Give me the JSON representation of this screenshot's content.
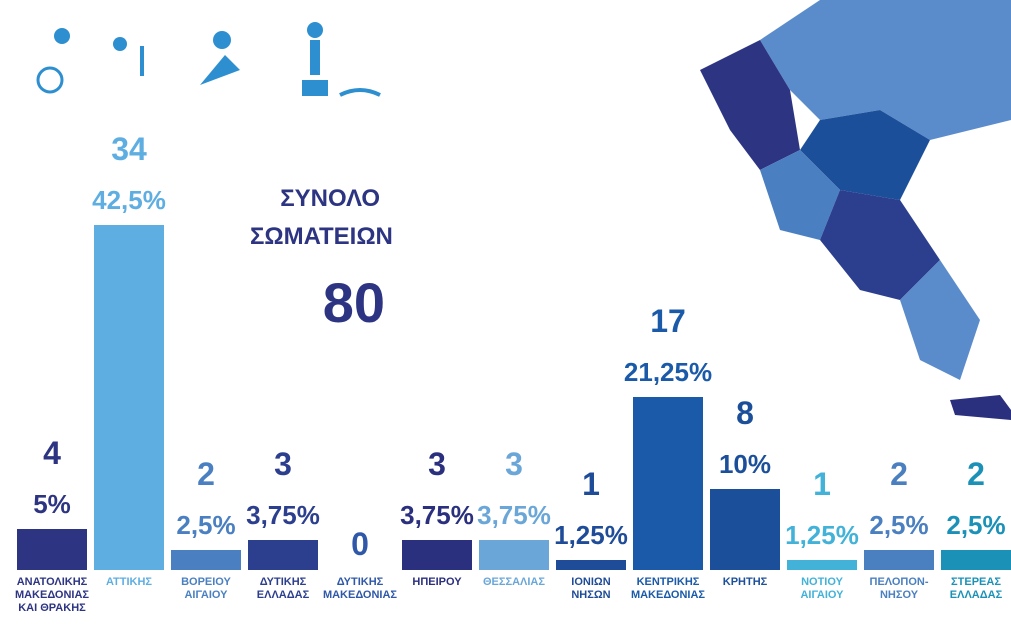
{
  "chart_data": {
    "type": "bar",
    "total_label": "ΣΥΝΟΛΟ ΣΩΜΑΤΕΙΩΝ",
    "total": 80,
    "categories": [
      "ΑΝΑΤΟΛΙΚΗΣ ΜΑΚΕΔΟΝΙΑΣ ΚΑΙ ΘΡΑΚΗΣ",
      "ΑΤΤΙΚΗΣ",
      "ΒΟΡΕΙΟΥ ΑΙΓΑΙΟΥ",
      "ΔΥΤΙΚΗΣ ΕΛΛΑΔΑΣ",
      "ΔΥΤΙΚΗΣ ΜΑΚΕΔΟΝΙΑΣ",
      "ΗΠΕΙΡΟΥ",
      "ΘΕΣΣΑΛΙΑΣ",
      "ΙΟΝΙΩΝ ΝΗΣΩΝ",
      "ΚΕΝΤΡΙΚΗΣ ΜΑΚΕΔΟΝΙΑΣ",
      "ΚΡΗΤΗΣ",
      "ΝΟΤΙΟΥ ΑΙΓΑΙΟΥ",
      "ΠΕΛΟΠΟΝ- ΝΗΣΟΥ",
      "ΣΤΕΡΕΑΣ ΕΛΛΑΔΑΣ"
    ],
    "values": [
      4,
      34,
      2,
      3,
      0,
      3,
      3,
      1,
      17,
      8,
      1,
      2,
      2
    ],
    "percent_values": [
      5,
      42.5,
      2.5,
      3.75,
      0,
      3.75,
      3.75,
      1.25,
      21.25,
      10,
      1.25,
      2.5,
      2.5
    ],
    "percent_labels": [
      "5%",
      "42,5%",
      "2,5%",
      "3,75%",
      null,
      "3,75%",
      "3,75%",
      "1,25%",
      "21,25%",
      "10%",
      "1,25%",
      "2,5%",
      "2,5%"
    ],
    "colors": [
      "#2d3583",
      "#5eaee2",
      "#4a80c2",
      "#2c3e8e",
      "#2f58a8",
      "#2a2f7e",
      "#6aa7d8",
      "#1f4c98",
      "#1a5aa8",
      "#1c4f9a",
      "#43b2d8",
      "#4a7fc0",
      "#1b91b8"
    ]
  }
}
